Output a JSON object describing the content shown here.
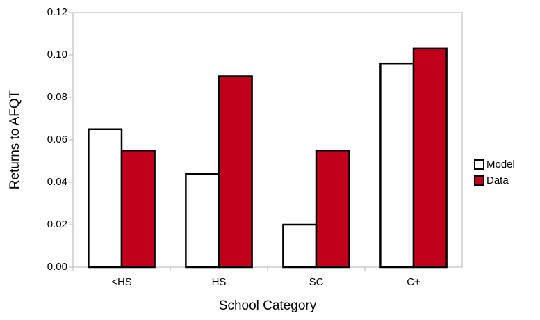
{
  "chart_data": {
    "type": "bar",
    "x_label": "School Category",
    "y_label": "Returns to AFQT",
    "categories": [
      "<HS",
      "HS",
      "SC",
      "C+"
    ],
    "series": [
      {
        "name": "Model",
        "color": "#ffffff",
        "values": [
          0.065,
          0.044,
          0.02,
          0.096
        ]
      },
      {
        "name": "Data",
        "color": "#c0001a",
        "values": [
          0.055,
          0.09,
          0.055,
          0.103
        ]
      }
    ],
    "ylim": [
      0,
      0.12
    ],
    "yticks": [
      {
        "value": 0,
        "label": "0.00"
      },
      0.02,
      0.04,
      0.06,
      0.08,
      {
        "value": 0.1,
        "label": "0.10"
      },
      0.12
    ],
    "grid": false,
    "legend": "right"
  }
}
